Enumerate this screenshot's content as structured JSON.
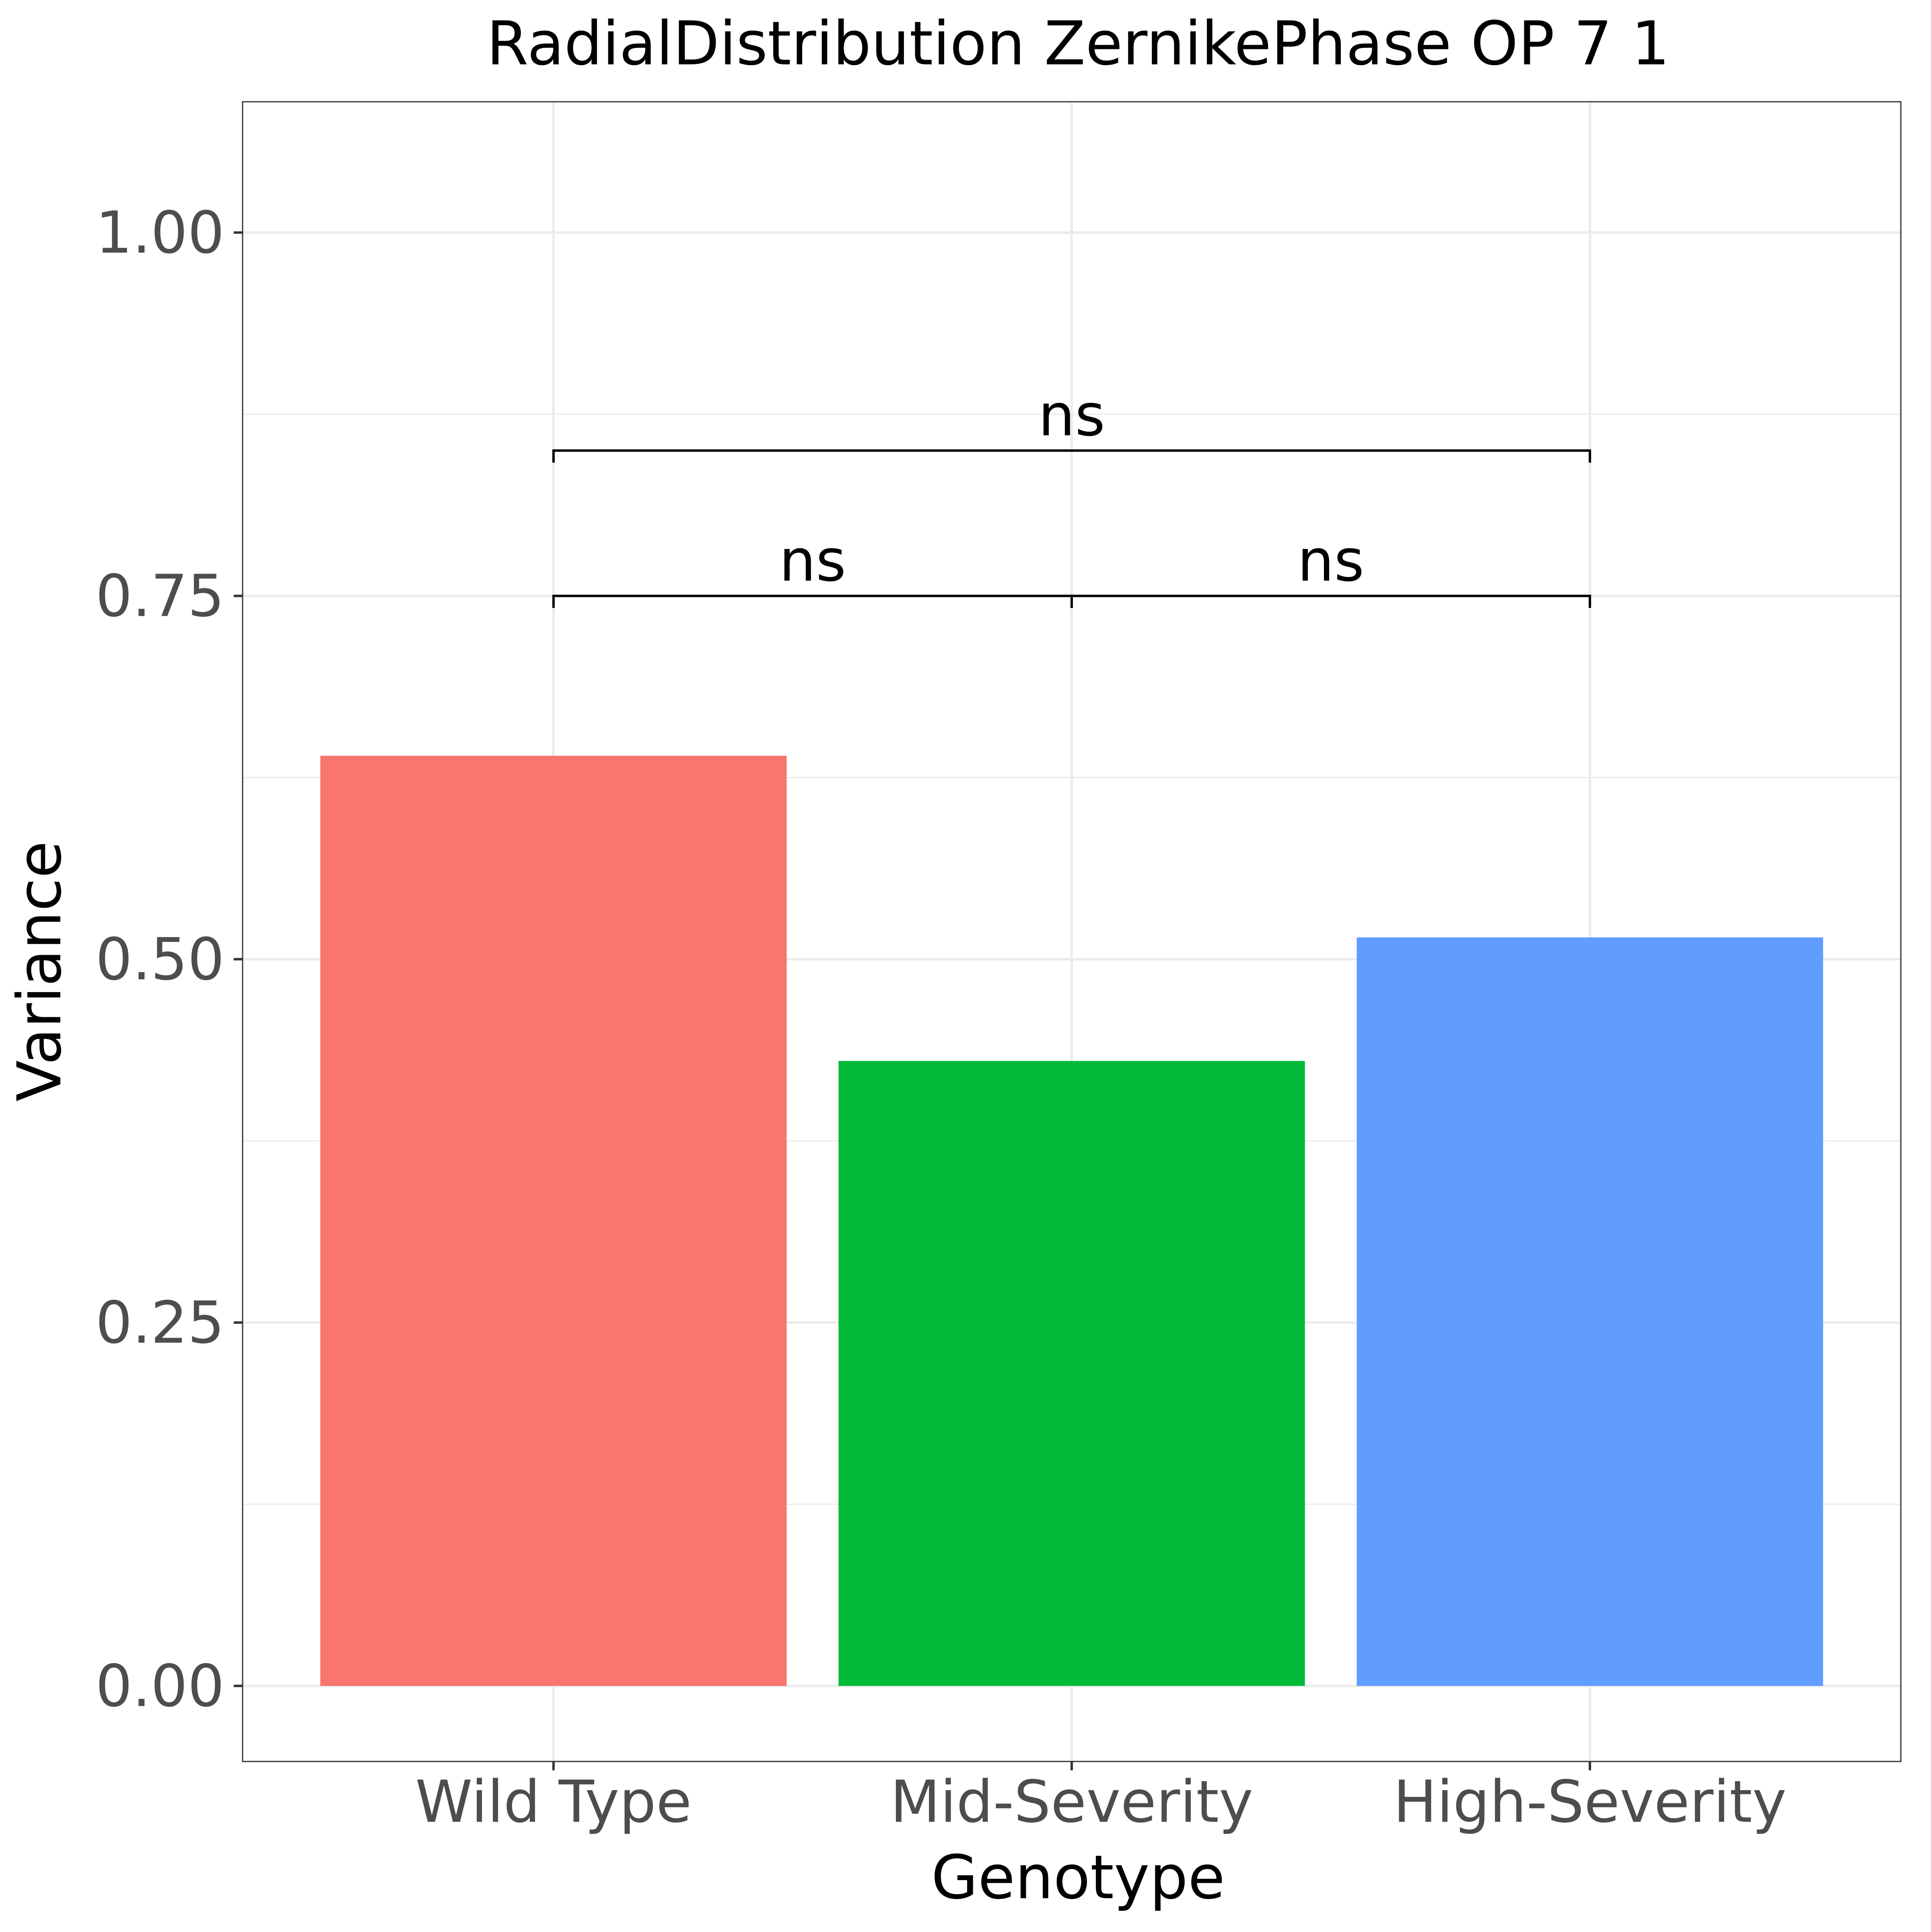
{
  "chart_data": {
    "type": "bar",
    "title": "RadialDistribution ZernikePhase OP 7 1",
    "xlabel": "Genotype",
    "ylabel": "Variance",
    "categories": [
      "Wild Type",
      "Mid-Severity",
      "High-Severity"
    ],
    "values": [
      0.64,
      0.43,
      0.515
    ],
    "colors": [
      "#F8766D",
      "#00BA38",
      "#619CFF"
    ],
    "ylim": [
      -0.052,
      1.09
    ],
    "yticks": [
      0.0,
      0.25,
      0.5,
      0.75,
      1.0
    ],
    "ytick_labels": [
      "0.00",
      "0.25",
      "0.50",
      "0.75",
      "1.00"
    ],
    "grid": true,
    "legend": "none",
    "comparisons": [
      {
        "from": 0,
        "to": 1,
        "y": 0.75,
        "label": "ns"
      },
      {
        "from": 1,
        "to": 2,
        "y": 0.75,
        "label": "ns"
      },
      {
        "from": 0,
        "to": 2,
        "y": 0.85,
        "label": "ns"
      }
    ]
  }
}
